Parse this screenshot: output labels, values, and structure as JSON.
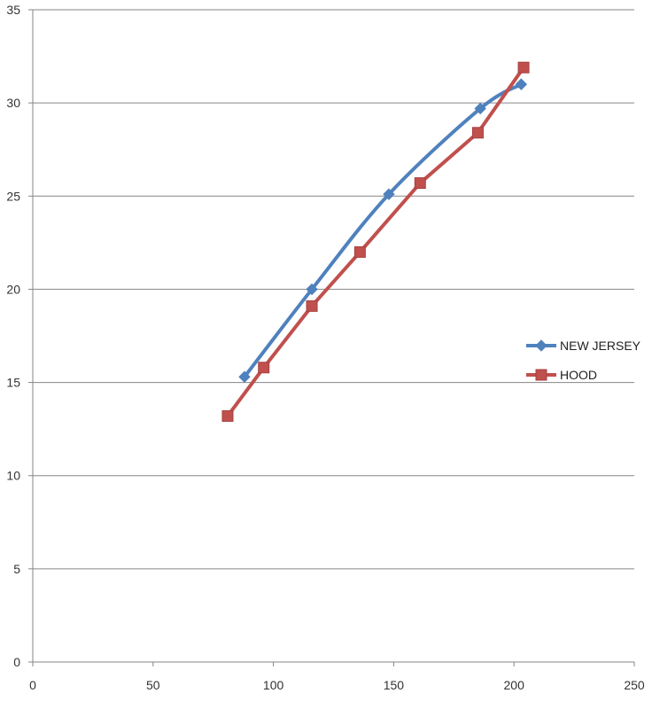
{
  "chart_data": {
    "type": "scatter",
    "title": "",
    "xlabel": "",
    "ylabel": "",
    "xlim": [
      0,
      250
    ],
    "ylim": [
      0,
      35
    ],
    "x_ticks": [
      "0",
      "50",
      "100",
      "150",
      "200",
      "250"
    ],
    "y_ticks": [
      "0",
      "5",
      "10",
      "15",
      "20",
      "25",
      "30",
      "35"
    ],
    "grid": "horizontal",
    "legend_position": "right",
    "series": [
      {
        "name": "NEW JERSEY",
        "color": "#4f81bd",
        "marker": "diamond",
        "smooth": true,
        "x": [
          88,
          116,
          148,
          186,
          203
        ],
        "y": [
          15.3,
          20.0,
          25.1,
          29.7,
          31.0
        ]
      },
      {
        "name": "HOOD",
        "color": "#c0504d",
        "marker": "square",
        "smooth": false,
        "x": [
          81,
          96,
          116,
          136,
          161,
          185,
          204
        ],
        "y": [
          13.2,
          15.8,
          19.1,
          22.0,
          25.7,
          28.4,
          31.9
        ]
      }
    ]
  }
}
